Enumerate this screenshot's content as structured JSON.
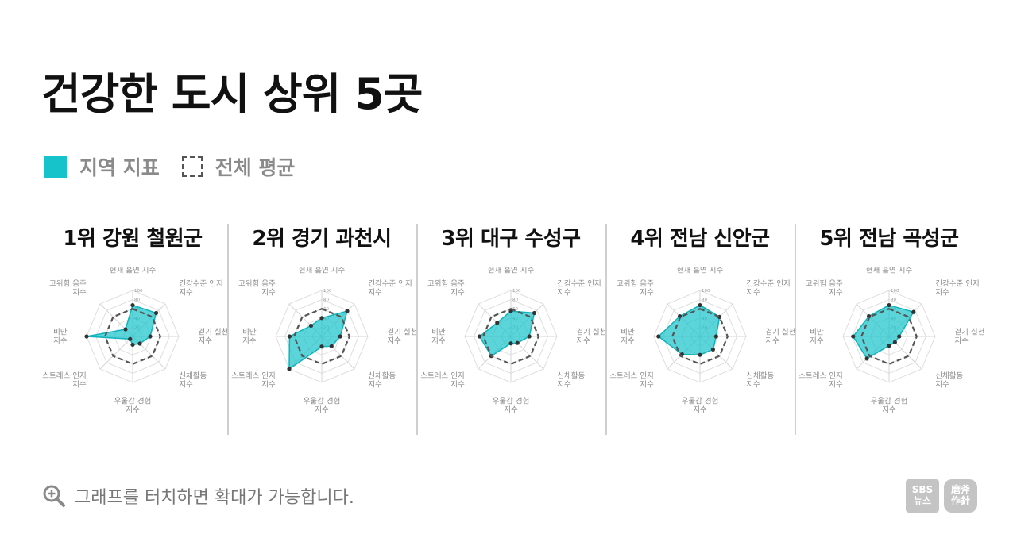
{
  "title": "건강한 도시 상위 5곳",
  "legend": {
    "region_label": "지역 지표",
    "average_label": "전체 평균",
    "region_color": "#17c3cb",
    "average_color": "#555555"
  },
  "footer": {
    "hint": "그래프를 터치하면 확대가 가능합니다.",
    "icon": "zoom-in-icon",
    "logo_sbs": [
      "SBS",
      "뉴스"
    ],
    "logo_mabu": [
      "磨斧",
      "作針"
    ]
  },
  "chart_data": [
    {
      "type": "radar",
      "title": "1위 강원 철원군",
      "axes": [
        "현재 흡연 지수",
        "건강수준 인지 지수",
        "걷기 실천 지수",
        "신체활동 지수",
        "우울감 경험 지수",
        "스트레스 인지 지수",
        "비만 지수",
        "고위험 음주 지수"
      ],
      "rlim": [
        0,
        100
      ],
      "ticks": [
        "100",
        "80",
        "60",
        "40",
        "20"
      ],
      "series": [
        {
          "role": "region",
          "values": [
            68,
            72,
            38,
            22,
            18,
            8,
            100,
            22
          ]
        },
        {
          "role": "average",
          "values": [
            60,
            60,
            60,
            60,
            60,
            60,
            60,
            60
          ]
        }
      ]
    },
    {
      "type": "radar",
      "title": "2위 경기 과천시",
      "axes": [
        "현재 흡연 지수",
        "건강수준 인지 지수",
        "걷기 실천 지수",
        "신체활동 지수",
        "우울감 경험 지수",
        "스트레스 인지 지수",
        "비만 지수",
        "고위험 음주 지수"
      ],
      "rlim": [
        0,
        100
      ],
      "ticks": [
        "100",
        "80",
        "60",
        "40",
        "20"
      ],
      "series": [
        {
          "role": "region",
          "values": [
            40,
            78,
            40,
            30,
            22,
            100,
            70,
            33
          ]
        },
        {
          "role": "average",
          "values": [
            60,
            60,
            60,
            60,
            60,
            60,
            60,
            60
          ]
        }
      ]
    },
    {
      "type": "radar",
      "title": "3위 대구 수성구",
      "axes": [
        "현재 흡연 지수",
        "건강수준 인지 지수",
        "걷기 실천 지수",
        "신체활동 지수",
        "우울감 경험 지수",
        "스트레스 인지 지수",
        "비만 지수",
        "고위험 음주 지수"
      ],
      "rlim": [
        0,
        100
      ],
      "ticks": [
        "100",
        "80",
        "60",
        "40",
        "20"
      ],
      "series": [
        {
          "role": "region",
          "values": [
            55,
            72,
            40,
            20,
            15,
            60,
            68,
            42
          ]
        },
        {
          "role": "average",
          "values": [
            60,
            60,
            60,
            60,
            60,
            60,
            60,
            60
          ]
        }
      ]
    },
    {
      "type": "radar",
      "title": "4위 전남 신안군",
      "axes": [
        "현재 흡연 지수",
        "건강수준 인지 지수",
        "걷기 실천 지수",
        "신체활동 지수",
        "우울감 경험 지수",
        "스트레스 인지 지수",
        "비만 지수",
        "고위험 음주 지수"
      ],
      "rlim": [
        0,
        100
      ],
      "ticks": [
        "100",
        "80",
        "60",
        "40",
        "20"
      ],
      "series": [
        {
          "role": "region",
          "values": [
            68,
            60,
            35,
            40,
            40,
            55,
            90,
            62
          ]
        },
        {
          "role": "average",
          "values": [
            60,
            60,
            60,
            60,
            60,
            60,
            60,
            60
          ]
        }
      ]
    },
    {
      "type": "radar",
      "title": "5위 전남 곡성군",
      "axes": [
        "현재 흡연 지수",
        "건강수준 인지 지수",
        "걷기 실천 지수",
        "신체활동 지수",
        "우울감 경험 지수",
        "스트레스 인지 지수",
        "비만 지수",
        "고위험 음주 지수"
      ],
      "rlim": [
        0,
        100
      ],
      "ticks": [
        "100",
        "80",
        "60",
        "40",
        "20"
      ],
      "series": [
        {
          "role": "region",
          "values": [
            68,
            75,
            22,
            18,
            20,
            68,
            78,
            62
          ]
        },
        {
          "role": "average",
          "values": [
            60,
            60,
            60,
            60,
            60,
            60,
            60,
            60
          ]
        }
      ]
    }
  ]
}
